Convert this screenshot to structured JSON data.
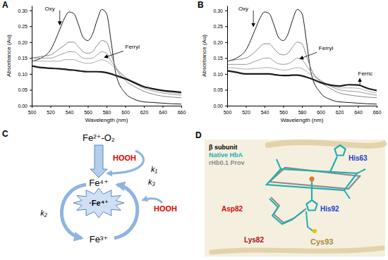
{
  "chart_data": [
    {
      "type": "line",
      "panel": "A",
      "x_label": "Wavelength (nm)",
      "y_label": "Absorbance (Au)",
      "x": [
        500,
        510,
        520,
        530,
        535,
        540,
        545,
        550,
        555,
        560,
        565,
        570,
        575,
        580,
        585,
        590,
        600,
        610,
        620,
        630,
        640,
        650,
        660
      ],
      "xlim": [
        500,
        660
      ],
      "xticks": [
        500,
        520,
        540,
        560,
        580,
        600,
        620,
        640,
        660
      ],
      "ylim": [
        0,
        0.315
      ],
      "yticks": [
        {
          "value": 0,
          "label": "0.00"
        },
        {
          "value": 0.05,
          "label": "0.05"
        },
        {
          "value": 0.1,
          "label": "0.10"
        },
        {
          "value": 0.15,
          "label": "0.15"
        },
        {
          "value": 0.2,
          "label": "0.20"
        },
        {
          "value": 0.25,
          "label": "0.25"
        },
        {
          "value": 0.3,
          "label": "0.30"
        }
      ],
      "series": [
        {
          "color": "#000000",
          "line_style": "solid",
          "values": [
            0.14,
            0.15,
            0.175,
            0.24,
            0.275,
            0.295,
            0.29,
            0.255,
            0.215,
            0.205,
            0.225,
            0.27,
            0.303,
            0.29,
            0.2,
            0.1,
            0.04,
            0.02,
            0.012,
            0.01,
            0.008,
            0.006,
            0.005
          ]
        },
        {
          "color": "#7a7a7a",
          "line_style": "solid",
          "values": [
            0.15,
            0.155,
            0.16,
            0.18,
            0.19,
            0.2,
            0.2,
            0.185,
            0.17,
            0.165,
            0.17,
            0.19,
            0.205,
            0.2,
            0.16,
            0.12,
            0.08,
            0.06,
            0.045,
            0.036,
            0.03,
            0.027,
            0.025
          ]
        },
        {
          "color": "#8f8f8f",
          "line_style": "solid",
          "values": [
            0.15,
            0.15,
            0.15,
            0.16,
            0.165,
            0.17,
            0.17,
            0.16,
            0.15,
            0.148,
            0.15,
            0.16,
            0.17,
            0.165,
            0.14,
            0.12,
            0.09,
            0.07,
            0.055,
            0.046,
            0.04,
            0.036,
            0.033
          ]
        },
        {
          "color": "#a3a3a3",
          "line_style": "solid",
          "values": [
            0.14,
            0.14,
            0.14,
            0.14,
            0.145,
            0.145,
            0.145,
            0.14,
            0.135,
            0.133,
            0.135,
            0.14,
            0.145,
            0.14,
            0.13,
            0.115,
            0.09,
            0.075,
            0.06,
            0.052,
            0.045,
            0.041,
            0.038
          ]
        },
        {
          "color": "#1a1a1a",
          "line_style": "thick",
          "values": [
            0.125,
            0.12,
            0.118,
            0.116,
            0.115,
            0.113,
            0.112,
            0.11,
            0.108,
            0.107,
            0.107,
            0.107,
            0.106,
            0.104,
            0.1,
            0.095,
            0.085,
            0.072,
            0.06,
            0.053,
            0.048,
            0.045,
            0.042
          ]
        }
      ],
      "annotations": [
        {
          "text": "Oxy",
          "x": 514,
          "y": 0.3,
          "arrow_from": [
            530,
            0.3
          ],
          "arrow_to": [
            530,
            0.255
          ]
        },
        {
          "text": "Ferryl",
          "x": 600,
          "y": 0.18,
          "arrow_from": [
            598,
            0.172
          ],
          "arrow_to": [
            578,
            0.152
          ]
        }
      ]
    },
    {
      "type": "line",
      "panel": "B",
      "x_label": "Wavelength (nm)",
      "y_label": "Absorbance (Au)",
      "x": [
        500,
        510,
        520,
        530,
        535,
        540,
        545,
        550,
        555,
        560,
        565,
        570,
        575,
        580,
        585,
        590,
        600,
        610,
        620,
        630,
        640,
        650,
        660
      ],
      "xlim": [
        500,
        660
      ],
      "xticks": [
        500,
        520,
        540,
        560,
        580,
        600,
        620,
        640,
        660
      ],
      "ylim": [
        0,
        0.315
      ],
      "yticks": [
        {
          "value": 0,
          "label": "0.00"
        },
        {
          "value": 0.05,
          "label": "0.05"
        },
        {
          "value": 0.1,
          "label": "0.10"
        },
        {
          "value": 0.15,
          "label": "0.15"
        },
        {
          "value": 0.2,
          "label": "0.20"
        },
        {
          "value": 0.25,
          "label": "0.25"
        },
        {
          "value": 0.3,
          "label": "0.30"
        }
      ],
      "series": [
        {
          "color": "#000000",
          "line_style": "solid",
          "values": [
            0.14,
            0.15,
            0.175,
            0.24,
            0.275,
            0.295,
            0.29,
            0.255,
            0.215,
            0.205,
            0.225,
            0.27,
            0.303,
            0.29,
            0.2,
            0.1,
            0.04,
            0.02,
            0.012,
            0.01,
            0.008,
            0.006,
            0.005
          ]
        },
        {
          "color": "#7a7a7a",
          "line_style": "solid",
          "values": [
            0.14,
            0.145,
            0.15,
            0.17,
            0.185,
            0.195,
            0.195,
            0.18,
            0.165,
            0.16,
            0.165,
            0.185,
            0.2,
            0.195,
            0.155,
            0.115,
            0.075,
            0.055,
            0.04,
            0.034,
            0.03,
            0.027,
            0.025
          ]
        },
        {
          "color": "#8f8f8f",
          "line_style": "solid",
          "values": [
            0.13,
            0.13,
            0.13,
            0.14,
            0.145,
            0.15,
            0.15,
            0.14,
            0.132,
            0.13,
            0.132,
            0.14,
            0.15,
            0.145,
            0.125,
            0.105,
            0.08,
            0.062,
            0.05,
            0.046,
            0.044,
            0.038,
            0.033
          ]
        },
        {
          "color": "#a3a3a3",
          "line_style": "solid",
          "values": [
            0.12,
            0.118,
            0.115,
            0.117,
            0.118,
            0.12,
            0.12,
            0.117,
            0.114,
            0.112,
            0.113,
            0.117,
            0.12,
            0.117,
            0.108,
            0.097,
            0.078,
            0.064,
            0.056,
            0.056,
            0.055,
            0.046,
            0.04
          ]
        },
        {
          "color": "#1a1a1a",
          "line_style": "thick",
          "values": [
            0.11,
            0.105,
            0.1,
            0.1,
            0.1,
            0.1,
            0.1,
            0.098,
            0.096,
            0.095,
            0.095,
            0.096,
            0.096,
            0.094,
            0.09,
            0.085,
            0.073,
            0.065,
            0.062,
            0.066,
            0.065,
            0.055,
            0.048
          ]
        }
      ],
      "annotations": [
        {
          "text": "Oxy",
          "x": 512,
          "y": 0.3,
          "arrow_from": [
            528,
            0.3
          ],
          "arrow_to": [
            528,
            0.25
          ]
        },
        {
          "text": "Ferryl",
          "x": 598,
          "y": 0.175,
          "arrow_from": [
            596,
            0.168
          ],
          "arrow_to": [
            578,
            0.148
          ]
        },
        {
          "text": "Ferric",
          "x": 640,
          "y": 0.095,
          "arrow_from": [
            642,
            0.062
          ],
          "arrow_to": [
            642,
            0.085
          ]
        }
      ]
    }
  ],
  "diagram": {
    "panel": "C",
    "species": {
      "oxy": "Fe²⁺-O₂",
      "ferryl": "Fe⁴⁺",
      "radical": "·Fe⁴⁺",
      "ferric": "Fe³⁺"
    },
    "reagents": [
      "HOOH",
      "HOOH"
    ],
    "reagent_color": "#e00000",
    "rates": [
      "k₁",
      "k₂",
      "k₃"
    ]
  },
  "structure": {
    "panel": "D",
    "title": "β subunit",
    "key": [
      {
        "label": "Native HbA",
        "color": "#1fb0b0"
      },
      {
        "label": "rHb0.1 Prov",
        "color": "#8a8a8a"
      }
    ],
    "residues": [
      {
        "label": "His63",
        "color": "#1b3fcc"
      },
      {
        "label": "His92",
        "color": "#1b3fcc"
      },
      {
        "label": "Asp82",
        "color": "#d01010"
      },
      {
        "label": "Lys82",
        "color": "#a01818"
      },
      {
        "label": "Cys93",
        "color": "#a8893a"
      }
    ]
  }
}
